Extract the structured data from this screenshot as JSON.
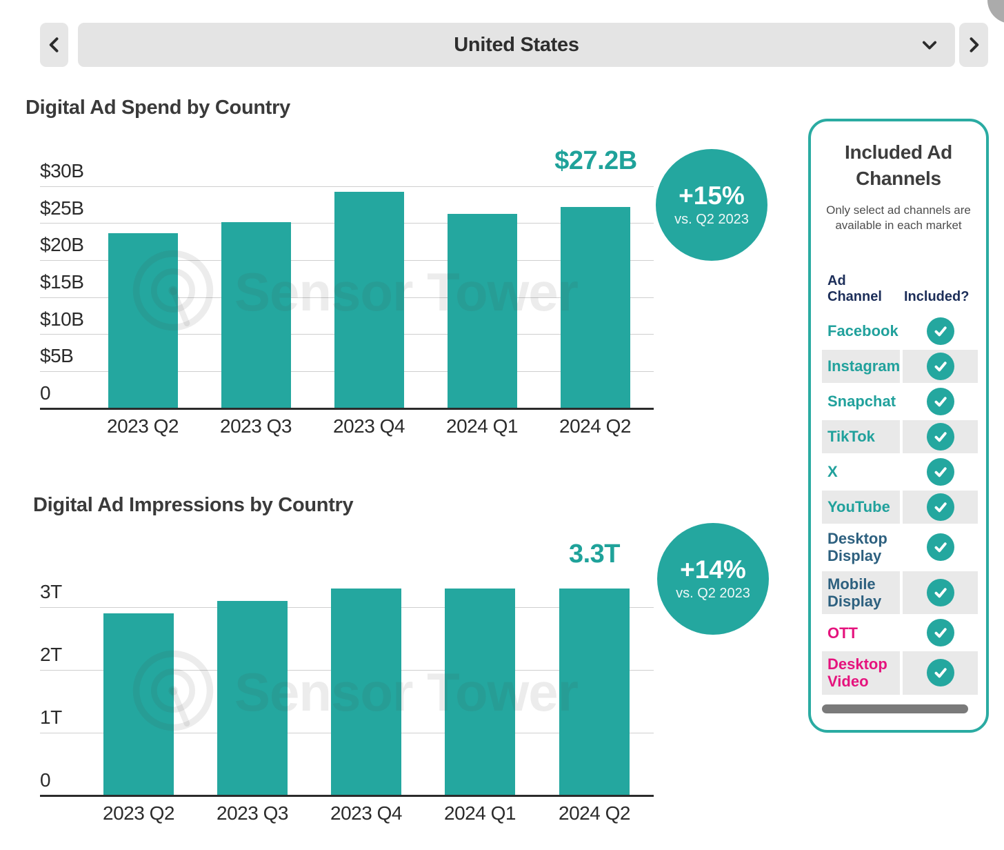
{
  "toolbar": {
    "selector_value": "United States"
  },
  "watermark": {
    "text": "Sensor Tower"
  },
  "chart_data": [
    {
      "type": "bar",
      "title": "Digital Ad Spend by Country",
      "categories": [
        "2023 Q2",
        "2023 Q3",
        "2023 Q4",
        "2024 Q1",
        "2024 Q2"
      ],
      "values": [
        23.7,
        25.2,
        29.3,
        26.3,
        27.2
      ],
      "unit": "USD billions",
      "xlabel": "",
      "ylabel": "",
      "ylim": [
        0,
        30
      ],
      "yticks": [
        0,
        5,
        10,
        15,
        20,
        25,
        30
      ],
      "ytick_labels": [
        "0",
        "$5B",
        "$10B",
        "$15B",
        "$20B",
        "$25B",
        "$30B"
      ],
      "grid": true,
      "annotations": [
        {
          "text": "$27.2B",
          "target": "2024 Q2"
        }
      ],
      "callout": {
        "text": "+15%",
        "subtext": "vs. Q2 2023"
      }
    },
    {
      "type": "bar",
      "title": "Digital Ad Impressions by Country",
      "categories": [
        "2023 Q2",
        "2023 Q3",
        "2023 Q4",
        "2024 Q1",
        "2024 Q2"
      ],
      "values": [
        2.9,
        3.1,
        3.3,
        3.3,
        3.3
      ],
      "unit": "trillions of impressions",
      "xlabel": "",
      "ylabel": "",
      "ylim": [
        0,
        3.5
      ],
      "yticks": [
        0,
        1,
        2,
        3
      ],
      "ytick_labels": [
        "0",
        "1T",
        "2T",
        "3T"
      ],
      "grid": true,
      "annotations": [
        {
          "text": "3.3T",
          "target": "2024 Q2"
        }
      ],
      "callout": {
        "text": "+14%",
        "subtext": "vs. Q2 2023"
      }
    }
  ],
  "panel": {
    "title": "Included Ad Channels",
    "subtitle": "Only select ad channels are available in each market",
    "columns": [
      "Ad Channel",
      "Included?"
    ],
    "rows": [
      {
        "label": "Facebook",
        "label_color": "#21a19c",
        "included": true
      },
      {
        "label": "Instagram",
        "label_color": "#21a19c",
        "included": true
      },
      {
        "label": "Snapchat",
        "label_color": "#21a19c",
        "included": true
      },
      {
        "label": "TikTok",
        "label_color": "#21a19c",
        "included": true
      },
      {
        "label": "X",
        "label_color": "#21a19c",
        "included": true
      },
      {
        "label": "YouTube",
        "label_color": "#21a19c",
        "included": true
      },
      {
        "label": "Desktop Display",
        "label_color": "#2d607f",
        "included": true
      },
      {
        "label": "Mobile Display",
        "label_color": "#2d607f",
        "included": true
      },
      {
        "label": "OTT",
        "label_color": "#e5137d",
        "included": true
      },
      {
        "label": "Desktop Video",
        "label_color": "#e5137d",
        "included": true
      }
    ]
  },
  "colors": {
    "accent_teal": "#24a79f",
    "teal_text": "#1fa29a",
    "navy_header": "#1c2e59",
    "slate_label": "#2d607f",
    "pink_label": "#e5137d",
    "toolbar_gray": "#e4e4e4",
    "row_gray": "#e9e9e9",
    "gridline": "#cfcfcf",
    "axis_text": "#2b2b2b"
  }
}
